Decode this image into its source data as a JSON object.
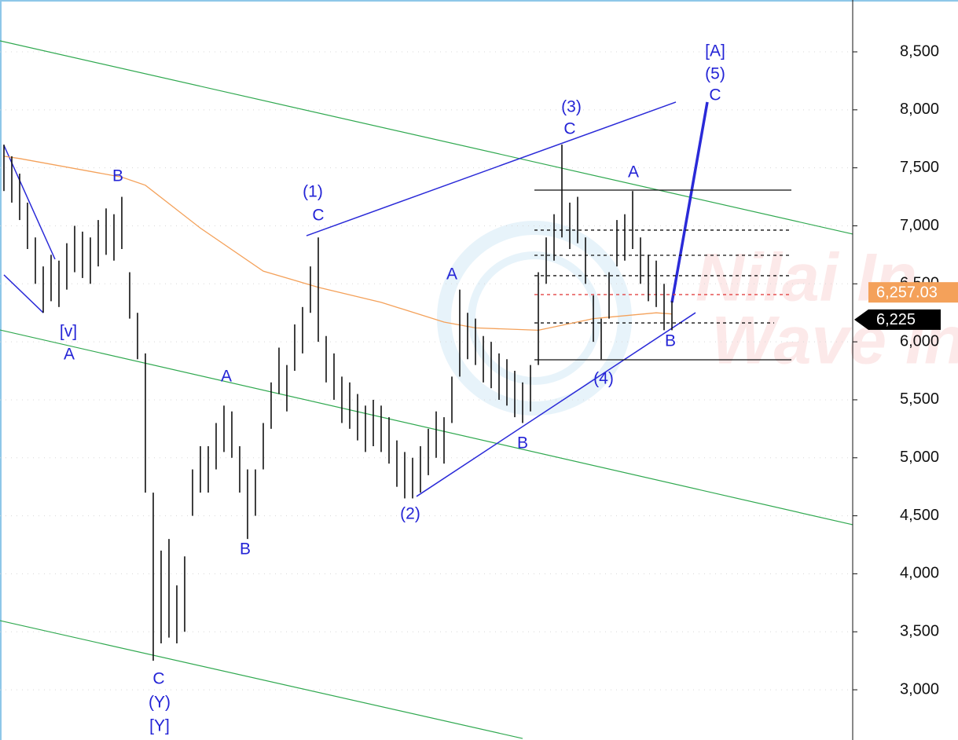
{
  "chart_data": {
    "type": "range-bar",
    "xlim": [
      -0.5,
      108
    ],
    "ylim": [
      2567,
      8947
    ],
    "yticks": [
      {
        "value": 3000,
        "label": "3,000"
      },
      {
        "value": 3500,
        "label": "3,500"
      },
      {
        "value": 4000,
        "label": "4,000"
      },
      {
        "value": 4500,
        "label": "4,500"
      },
      {
        "value": 5000,
        "label": "5,000"
      },
      {
        "value": 5500,
        "label": "5,500"
      },
      {
        "value": 6000,
        "label": "6,000"
      },
      {
        "value": 6500,
        "label": "6,500"
      },
      {
        "value": 7000,
        "label": "7,000"
      },
      {
        "value": 7500,
        "label": "7,500"
      },
      {
        "value": 8000,
        "label": "8,000"
      },
      {
        "value": 8500,
        "label": "8,500"
      }
    ],
    "grid": true,
    "color": "#111111",
    "high": [
      7700,
      7600,
      7450,
      7200,
      6900,
      6650,
      6750,
      6700,
      6850,
      7000,
      6950,
      6900,
      7050,
      7150,
      7100,
      7250,
      6600,
      6250,
      5900,
      4700,
      4200,
      4300,
      3900,
      4150,
      4900,
      5100,
      5100,
      5300,
      5450,
      5400,
      5100,
      4900,
      4900,
      5300,
      5650,
      5950,
      5800,
      6150,
      6300,
      6650,
      6900,
      6050,
      5900,
      5700,
      5650,
      5550,
      5450,
      5500,
      5450,
      5350,
      5150,
      5050,
      5000,
      5100,
      5250,
      5400,
      5350,
      5700,
      6450,
      6250,
      6200,
      6050,
      6000,
      5900,
      5850,
      5750,
      5650,
      5800,
      6600,
      6900,
      7100,
      7700,
      7200,
      7250,
      6900,
      6400,
      6200,
      6600,
      7050,
      7100,
      7300,
      6900,
      6750,
      6700,
      6500,
      6350
    ],
    "low": [
      7300,
      7200,
      7050,
      6800,
      6500,
      6250,
      6350,
      6300,
      6450,
      6600,
      6550,
      6500,
      6650,
      6750,
      6700,
      6800,
      6200,
      5850,
      4700,
      3250,
      3400,
      3450,
      3400,
      3500,
      4500,
      4700,
      4700,
      4900,
      5050,
      5000,
      4700,
      4300,
      4500,
      4900,
      5250,
      5550,
      5400,
      5750,
      5900,
      6250,
      6000,
      5650,
      5500,
      5300,
      5250,
      5150,
      5050,
      5100,
      5050,
      4950,
      4750,
      4650,
      4650,
      4700,
      4850,
      5000,
      4950,
      5300,
      5700,
      5850,
      5800,
      5650,
      5600,
      5500,
      5450,
      5350,
      5300,
      5400,
      5800,
      6500,
      6700,
      6900,
      6800,
      6850,
      6500,
      6000,
      5850,
      6200,
      6650,
      6700,
      6800,
      6500,
      6350,
      6300,
      6100,
      6100
    ],
    "moving_average": {
      "color": "#f4a15a",
      "x": [
        0,
        2,
        15,
        18,
        25,
        33,
        40,
        48,
        56,
        60,
        68,
        75,
        83,
        85
      ],
      "values": [
        7600,
        7580,
        7420,
        7350,
        6980,
        6610,
        6470,
        6340,
        6170,
        6120,
        6100,
        6200,
        6250,
        6240
      ]
    },
    "lines": [
      {
        "color": "#2fa84f",
        "width": 1.2,
        "x": [
          -0.5,
          108
        ],
        "y": [
          8595,
          6929
        ]
      },
      {
        "color": "#2fa84f",
        "width": 1.2,
        "x": [
          -0.5,
          108
        ],
        "y": [
          6102,
          4423
        ]
      },
      {
        "color": "#2fa84f",
        "width": 1.2,
        "x": [
          -0.5,
          66
        ],
        "y": [
          3596,
          2580
        ]
      },
      {
        "color": "#2a2ad8",
        "width": 1.5,
        "x": [
          38.5,
          85.5
        ],
        "y": [
          6915,
          8067
        ]
      },
      {
        "color": "#2a2ad8",
        "width": 1.5,
        "x": [
          52.5,
          88
        ],
        "y": [
          4667,
          6251
        ]
      },
      {
        "color": "#2a2ad8",
        "width": 1.5,
        "x": [
          0,
          6.5
        ],
        "y": [
          7694,
          6712
        ]
      },
      {
        "color": "#2a2ad8",
        "width": 1.5,
        "x": [
          0,
          5
        ],
        "y": [
          6577,
          6251
        ]
      },
      {
        "color": "#2a2ad8",
        "width": 3.5,
        "x": [
          85,
          89.5
        ],
        "y": [
          6339,
          8067
        ]
      }
    ],
    "levels": [
      {
        "value": 7308,
        "x": [
          67.5,
          100.2
        ],
        "color": "#111111",
        "dash": false
      },
      {
        "value": 6963,
        "x": [
          67.5,
          100.2
        ],
        "color": "#111111",
        "dash": true
      },
      {
        "value": 6746,
        "x": [
          67.5,
          100.2
        ],
        "color": "#111111",
        "dash": true
      },
      {
        "value": 6570,
        "x": [
          67.5,
          100.2
        ],
        "color": "#111111",
        "dash": true
      },
      {
        "value": 6407,
        "x": [
          67.5,
          100.2
        ],
        "color": "#e03030",
        "dash": true
      },
      {
        "value": 6163,
        "x": [
          67.5,
          98
        ],
        "color": "#111111",
        "dash": true
      },
      {
        "value": 5845,
        "x": [
          67.5,
          100.2
        ],
        "color": "#111111",
        "dash": false
      }
    ],
    "price_labels": [
      {
        "value": 6257.03,
        "label": "6,257.03",
        "color": "#f4a15a"
      },
      {
        "value": 6225,
        "label": "6,225",
        "color": "#000000"
      }
    ],
    "annotations": [
      {
        "text": "[A]",
        "x": 90.5,
        "y": 8500
      },
      {
        "text": "(5)",
        "x": 90.5,
        "y": 8304
      },
      {
        "text": "C",
        "x": 90.5,
        "y": 8121
      },
      {
        "text": "(3)",
        "x": 72.2,
        "y": 8019
      },
      {
        "text": "C",
        "x": 72.0,
        "y": 7830
      },
      {
        "text": "A",
        "x": 80.1,
        "y": 7457
      },
      {
        "text": "B",
        "x": 14.5,
        "y": 7423
      },
      {
        "text": "(1)",
        "x": 39.3,
        "y": 7288
      },
      {
        "text": "C",
        "x": 40.0,
        "y": 7084
      },
      {
        "text": "A",
        "x": 57.0,
        "y": 6576
      },
      {
        "text": "[v]",
        "x": 8.2,
        "y": 6082
      },
      {
        "text": "A",
        "x": 8.3,
        "y": 5886
      },
      {
        "text": "B",
        "x": 84.8,
        "y": 6000
      },
      {
        "text": "(4)",
        "x": 76.3,
        "y": 5676
      },
      {
        "text": "A",
        "x": 28.3,
        "y": 5696
      },
      {
        "text": "B",
        "x": 66.0,
        "y": 5120
      },
      {
        "text": "(2)",
        "x": 51.7,
        "y": 4510
      },
      {
        "text": "B",
        "x": 30.7,
        "y": 4206
      },
      {
        "text": "C",
        "x": 19.7,
        "y": 3088
      },
      {
        "text": "(Y)",
        "x": 19.8,
        "y": 2885
      },
      {
        "text": "[Y]",
        "x": 19.8,
        "y": 2682
      }
    ],
    "watermark": [
      "Nilai In",
      "Wave In"
    ]
  }
}
